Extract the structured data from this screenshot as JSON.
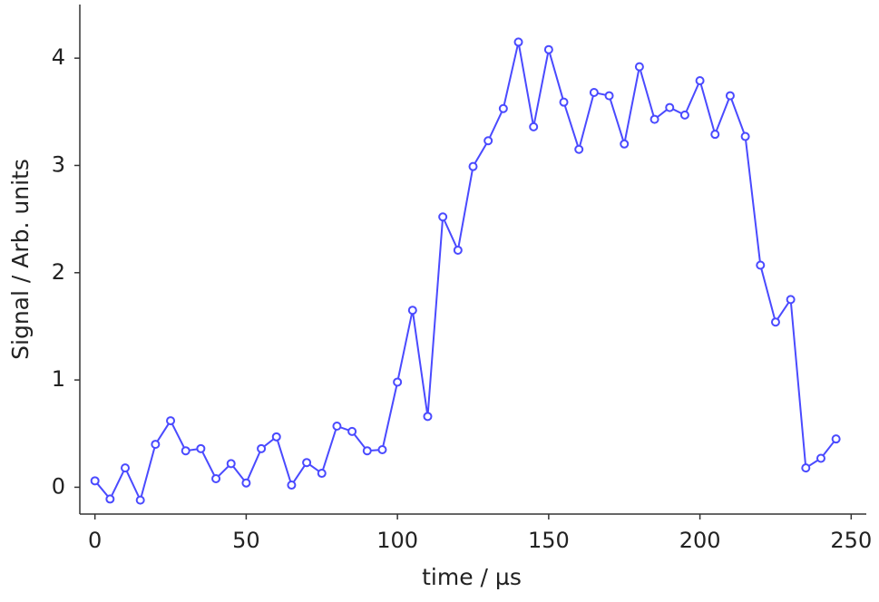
{
  "chart_data": {
    "type": "line",
    "x_label": "time / µs",
    "y_label": "Signal / Arb. units",
    "x": [
      0,
      5,
      10,
      15,
      20,
      25,
      30,
      35,
      40,
      45,
      50,
      55,
      60,
      65,
      70,
      75,
      80,
      85,
      90,
      95,
      100,
      105,
      110,
      115,
      120,
      125,
      130,
      135,
      140,
      145,
      150,
      155,
      160,
      165,
      170,
      175,
      180,
      185,
      190,
      195,
      200,
      205,
      210,
      215,
      220,
      225,
      230,
      235,
      240,
      245
    ],
    "series": [
      {
        "color": "#4a4aff",
        "values": [
          0.06,
          -0.11,
          0.18,
          -0.12,
          0.4,
          0.62,
          0.34,
          0.36,
          0.08,
          0.22,
          0.04,
          0.36,
          0.47,
          0.02,
          0.23,
          0.13,
          0.57,
          0.52,
          0.34,
          0.35,
          0.98,
          1.65,
          0.66,
          2.52,
          2.21,
          2.99,
          3.23,
          3.53,
          4.15,
          3.36,
          4.08,
          3.59,
          3.15,
          3.68,
          3.65,
          3.2,
          3.92,
          3.43,
          3.54,
          3.47,
          3.79,
          3.29,
          3.65,
          3.27,
          2.07,
          1.54,
          1.75,
          0.18,
          0.27,
          0.45
        ]
      }
    ],
    "xlim": [
      -5,
      255
    ],
    "xticks": [
      0,
      50,
      100,
      150,
      200,
      250
    ],
    "ylim": [
      -0.25,
      4.5
    ],
    "yticks": [
      0,
      1,
      2,
      3,
      4
    ],
    "grid": false
  }
}
